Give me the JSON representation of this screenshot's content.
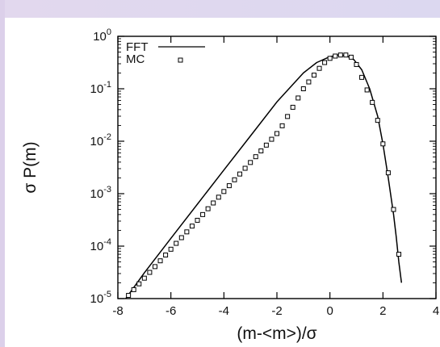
{
  "chart_data": {
    "type": "line",
    "title": "",
    "xlabel": "(m-<m>)/σ",
    "ylabel": "σ P(m)",
    "xlim": [
      -8,
      4
    ],
    "ylim": [
      1e-05,
      1
    ],
    "yscale": "log",
    "grid": false,
    "legend_position": "top-left",
    "x_ticks": [
      -8,
      -6,
      -4,
      -2,
      0,
      2,
      4
    ],
    "x_tick_labels": [
      "-8",
      "-6",
      "-4",
      "-2",
      "0",
      "2",
      "4"
    ],
    "y_ticks": [
      1,
      0.1,
      0.01,
      0.001,
      0.0001,
      1e-05
    ],
    "y_tick_labels": [
      {
        "base": "10",
        "exp": "0"
      },
      {
        "base": "10",
        "exp": "-1"
      },
      {
        "base": "10",
        "exp": "-2"
      },
      {
        "base": "10",
        "exp": "-3"
      },
      {
        "base": "10",
        "exp": "-4"
      },
      {
        "base": "10",
        "exp": "-5"
      }
    ],
    "series": [
      {
        "name": "FFT",
        "style": "line",
        "color": "#000000",
        "x": [
          -7.7,
          -7.0,
          -6.0,
          -5.0,
          -4.0,
          -3.0,
          -2.0,
          -1.0,
          -0.5,
          0.0,
          0.3,
          0.6,
          0.9,
          1.2,
          1.5,
          1.8,
          2.0,
          2.2,
          2.4,
          2.5,
          2.6,
          2.7
        ],
        "y": [
          1e-05,
          3.1e-05,
          0.000141,
          0.000631,
          0.00282,
          0.0126,
          0.0562,
          0.2,
          0.316,
          0.41,
          0.44,
          0.43,
          0.36,
          0.23,
          0.1,
          0.03,
          0.0089,
          0.002,
          0.0004,
          0.00015,
          5e-05,
          2e-05
        ]
      },
      {
        "name": "MC",
        "style": "markers",
        "marker": "open-square",
        "color": "#000000",
        "x": [
          -7.6,
          -7.4,
          -7.2,
          -7.0,
          -6.8,
          -6.6,
          -6.4,
          -6.2,
          -6.0,
          -5.8,
          -5.6,
          -5.4,
          -5.2,
          -5.0,
          -4.8,
          -4.6,
          -4.4,
          -4.2,
          -4.0,
          -3.8,
          -3.6,
          -3.4,
          -3.2,
          -3.0,
          -2.8,
          -2.6,
          -2.4,
          -2.2,
          -2.0,
          -1.8,
          -1.6,
          -1.4,
          -1.2,
          -1.0,
          -0.8,
          -0.6,
          -0.4,
          -0.2,
          0.0,
          0.2,
          0.4,
          0.6,
          0.8,
          1.0,
          1.2,
          1.4,
          1.6,
          1.8,
          2.0,
          2.2,
          2.4,
          2.6
        ],
        "y": [
          1.15e-05,
          1.48e-05,
          1.91e-05,
          2.45e-05,
          3.16e-05,
          4.07e-05,
          5.25e-05,
          6.77e-05,
          8.73e-05,
          0.000113,
          0.000145,
          0.000187,
          0.000241,
          0.000311,
          0.0004,
          0.000516,
          0.000665,
          0.000857,
          0.0011,
          0.00142,
          0.00184,
          0.00237,
          0.00305,
          0.00393,
          0.00507,
          0.00654,
          0.00843,
          0.0109,
          0.014,
          0.0197,
          0.0296,
          0.0444,
          0.0667,
          0.1,
          0.135,
          0.182,
          0.245,
          0.316,
          0.38,
          0.42,
          0.44,
          0.44,
          0.4,
          0.29,
          0.165,
          0.095,
          0.055,
          0.025,
          0.0089,
          0.0025,
          0.0005,
          7e-05
        ]
      }
    ]
  }
}
